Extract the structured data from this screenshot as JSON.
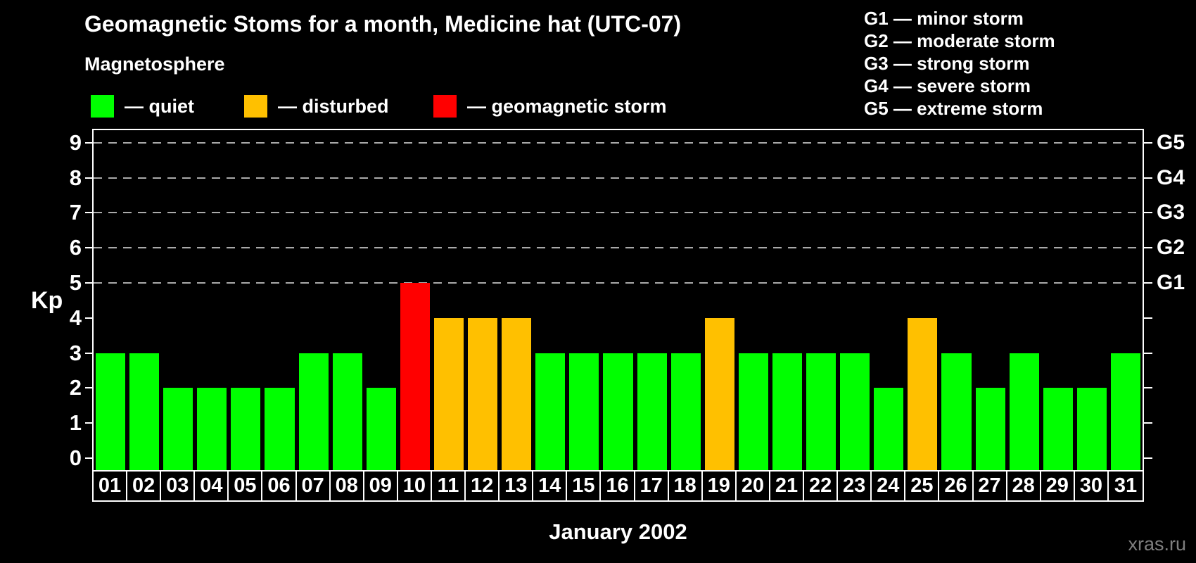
{
  "chart_data": {
    "type": "bar",
    "title": "Geomagnetic Stoms for a month, Medicine hat (UTC-07)",
    "xlabel": "January 2002",
    "ylabel": "Kp",
    "ylim": [
      0,
      9
    ],
    "y_ticks": [
      0,
      1,
      2,
      3,
      4,
      5,
      6,
      7,
      8,
      9
    ],
    "gridlines_kp": [
      5,
      6,
      7,
      8,
      9
    ],
    "grid_style": "horizontal dashed gray at storm levels only",
    "legend_position": "top",
    "categories": [
      "01",
      "02",
      "03",
      "04",
      "05",
      "06",
      "07",
      "08",
      "09",
      "10",
      "11",
      "12",
      "13",
      "14",
      "15",
      "16",
      "17",
      "18",
      "19",
      "20",
      "21",
      "22",
      "23",
      "24",
      "25",
      "26",
      "27",
      "28",
      "29",
      "30",
      "31"
    ],
    "values": [
      3,
      3,
      2,
      2,
      2,
      2,
      3,
      3,
      2,
      5,
      4,
      4,
      4,
      3,
      3,
      3,
      3,
      3,
      4,
      3,
      3,
      3,
      3,
      2,
      4,
      3,
      2,
      3,
      2,
      2,
      3
    ],
    "states": [
      "quiet",
      "quiet",
      "quiet",
      "quiet",
      "quiet",
      "quiet",
      "quiet",
      "quiet",
      "quiet",
      "storm",
      "disturbed",
      "disturbed",
      "disturbed",
      "quiet",
      "quiet",
      "quiet",
      "quiet",
      "quiet",
      "disturbed",
      "quiet",
      "quiet",
      "quiet",
      "quiet",
      "quiet",
      "disturbed",
      "quiet",
      "quiet",
      "quiet",
      "quiet",
      "quiet",
      "quiet"
    ],
    "colors": {
      "quiet": "#00ff00",
      "disturbed": "#ffc000",
      "storm": "#ff0000"
    },
    "right_axis_labels": [
      {
        "kp": 5,
        "label": "G1"
      },
      {
        "kp": 6,
        "label": "G2"
      },
      {
        "kp": 7,
        "label": "G3"
      },
      {
        "kp": 8,
        "label": "G4"
      },
      {
        "kp": 9,
        "label": "G5"
      }
    ]
  },
  "legend": {
    "title": "Magnetosphere",
    "items": [
      {
        "state": "quiet",
        "label": "— quiet",
        "color": "#00ff00"
      },
      {
        "state": "disturbed",
        "label": "— disturbed",
        "color": "#ffc000"
      },
      {
        "state": "storm",
        "label": "— geomagnetic storm",
        "color": "#ff0000"
      }
    ]
  },
  "g_scale_legend": {
    "items": [
      "G1 — minor storm",
      "G2 — moderate storm",
      "G3 — strong storm",
      "G4 — severe storm",
      "G5 — extreme storm"
    ]
  },
  "watermark": "xras.ru"
}
